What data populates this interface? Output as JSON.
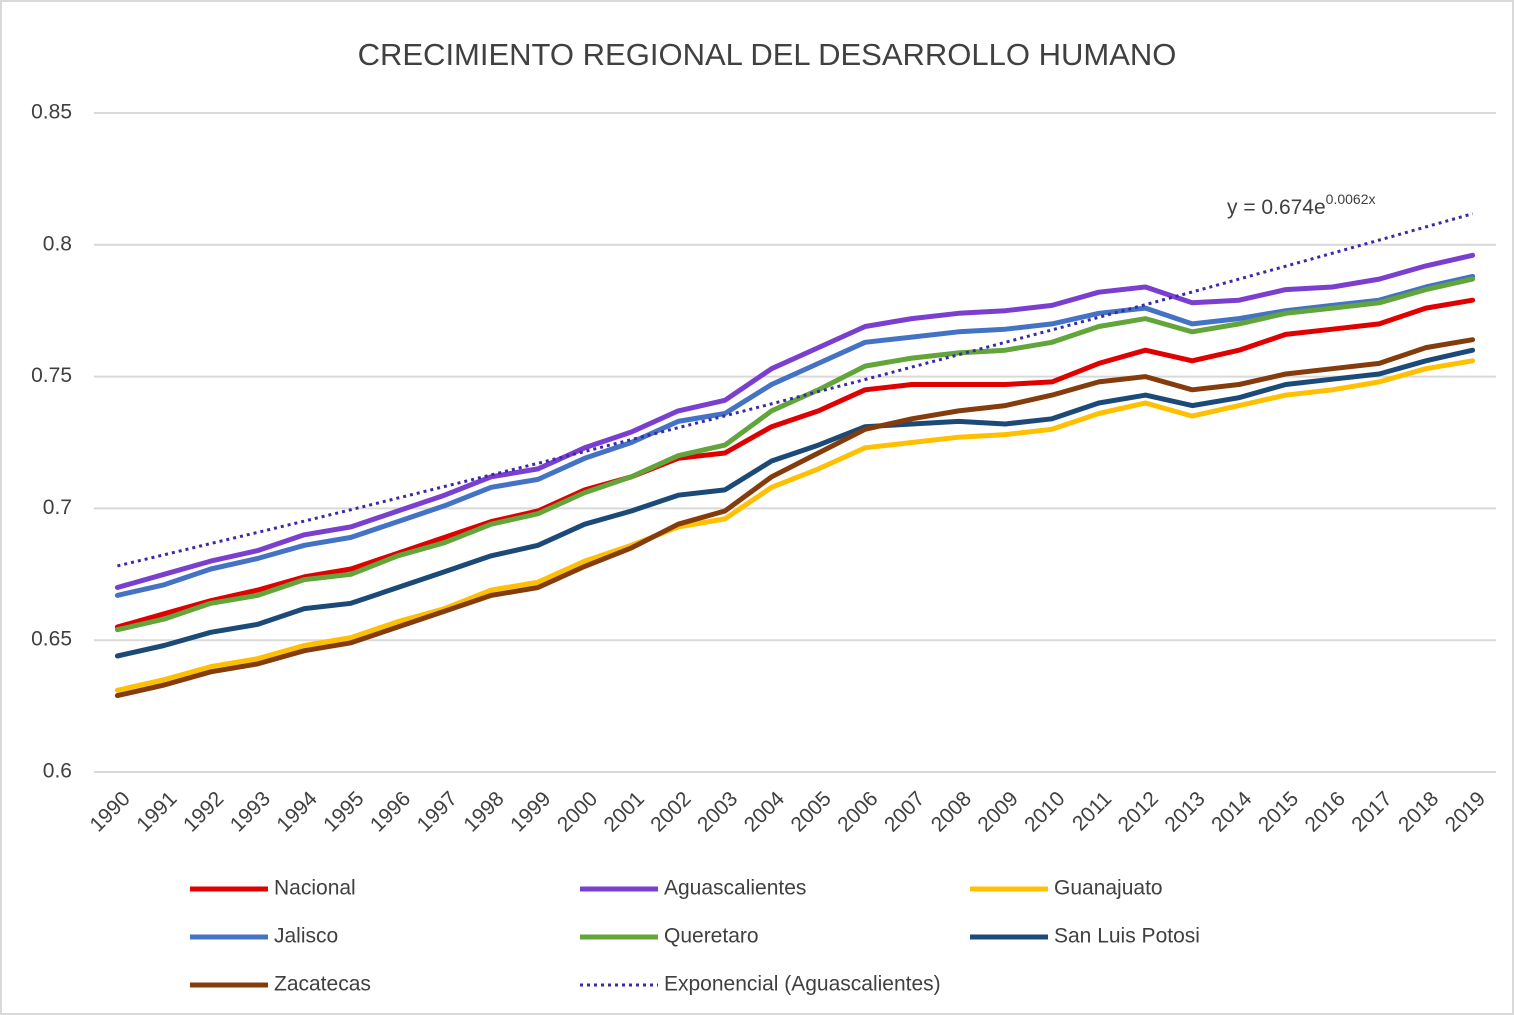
{
  "chart_data": {
    "type": "line",
    "title": "CRECIMIENTO REGIONAL DEL DESARROLLO HUMANO",
    "annotation": {
      "text": "y = 0.674e",
      "exponent": "0.0062x"
    },
    "categories": [
      "1990",
      "1991",
      "1992",
      "1993",
      "1994",
      "1995",
      "1996",
      "1997",
      "1998",
      "1999",
      "2000",
      "2001",
      "2002",
      "2003",
      "2004",
      "2005",
      "2006",
      "2007",
      "2008",
      "2009",
      "2010",
      "2011",
      "2012",
      "2013",
      "2014",
      "2015",
      "2016",
      "2017",
      "2018",
      "2019"
    ],
    "ylim": [
      0.6,
      0.85
    ],
    "yticks": [
      0.6,
      0.65,
      0.7,
      0.75,
      0.8,
      0.85
    ],
    "grid": true,
    "legend": "bottom",
    "series": [
      {
        "name": "Nacional",
        "color": "#e00000",
        "values": [
          0.655,
          0.66,
          0.665,
          0.669,
          0.674,
          0.677,
          0.683,
          0.689,
          0.695,
          0.699,
          0.707,
          0.712,
          0.719,
          0.721,
          0.731,
          0.737,
          0.745,
          0.747,
          0.747,
          0.747,
          0.748,
          0.755,
          0.76,
          0.756,
          0.76,
          0.766,
          0.768,
          0.77,
          0.776,
          0.779
        ]
      },
      {
        "name": "Aguascalientes",
        "color": "#7b3fd0",
        "values": [
          0.67,
          0.675,
          0.68,
          0.684,
          0.69,
          0.693,
          0.699,
          0.705,
          0.712,
          0.715,
          0.723,
          0.729,
          0.737,
          0.741,
          0.753,
          0.761,
          0.769,
          0.772,
          0.774,
          0.775,
          0.777,
          0.782,
          0.784,
          0.778,
          0.779,
          0.783,
          0.784,
          0.787,
          0.792,
          0.796
        ]
      },
      {
        "name": "Guanajuato",
        "color": "#ffc000",
        "values": [
          0.631,
          0.635,
          0.64,
          0.643,
          0.648,
          0.651,
          0.657,
          0.662,
          0.669,
          0.672,
          0.68,
          0.686,
          0.693,
          0.696,
          0.708,
          0.715,
          0.723,
          0.725,
          0.727,
          0.728,
          0.73,
          0.736,
          0.74,
          0.735,
          0.739,
          0.743,
          0.745,
          0.748,
          0.753,
          0.756
        ]
      },
      {
        "name": "Jalisco",
        "color": "#4472c4",
        "values": [
          0.667,
          0.671,
          0.677,
          0.681,
          0.686,
          0.689,
          0.695,
          0.701,
          0.708,
          0.711,
          0.719,
          0.725,
          0.733,
          0.736,
          0.747,
          0.755,
          0.763,
          0.765,
          0.767,
          0.768,
          0.77,
          0.774,
          0.776,
          0.77,
          0.772,
          0.775,
          0.777,
          0.779,
          0.784,
          0.788
        ]
      },
      {
        "name": "Queretaro",
        "color": "#62a53a",
        "values": [
          0.654,
          0.658,
          0.664,
          0.667,
          0.673,
          0.675,
          0.682,
          0.687,
          0.694,
          0.698,
          0.706,
          0.712,
          0.72,
          0.724,
          0.737,
          0.745,
          0.754,
          0.757,
          0.759,
          0.76,
          0.763,
          0.769,
          0.772,
          0.767,
          0.77,
          0.774,
          0.776,
          0.778,
          0.783,
          0.787
        ]
      },
      {
        "name": "San Luis Potosi",
        "color": "#1c4a78",
        "values": [
          0.644,
          0.648,
          0.653,
          0.656,
          0.662,
          0.664,
          0.67,
          0.676,
          0.682,
          0.686,
          0.694,
          0.699,
          0.705,
          0.707,
          0.718,
          0.724,
          0.731,
          0.732,
          0.733,
          0.732,
          0.734,
          0.74,
          0.743,
          0.739,
          0.742,
          0.747,
          0.749,
          0.751,
          0.756,
          0.76
        ]
      },
      {
        "name": "Zacatecas",
        "color": "#843c0c",
        "values": [
          0.629,
          0.633,
          0.638,
          0.641,
          0.646,
          0.649,
          0.655,
          0.661,
          0.667,
          0.67,
          0.678,
          0.685,
          0.694,
          0.699,
          0.712,
          0.721,
          0.73,
          0.734,
          0.737,
          0.739,
          0.743,
          0.748,
          0.75,
          0.745,
          0.747,
          0.751,
          0.753,
          0.755,
          0.761,
          0.764
        ]
      },
      {
        "name": "Exponencial (Aguascalientes)",
        "color": "#3a2aa8",
        "dash": "dotted",
        "values": [
          0.6782,
          0.6824,
          0.6867,
          0.6909,
          0.6952,
          0.6995,
          0.7039,
          0.7083,
          0.7127,
          0.7171,
          0.7216,
          0.7261,
          0.7306,
          0.7351,
          0.7397,
          0.7443,
          0.7489,
          0.7536,
          0.7583,
          0.763,
          0.7677,
          0.7725,
          0.7773,
          0.7821,
          0.787,
          0.7919,
          0.7968,
          0.8018,
          0.8068,
          0.8118
        ]
      }
    ]
  }
}
